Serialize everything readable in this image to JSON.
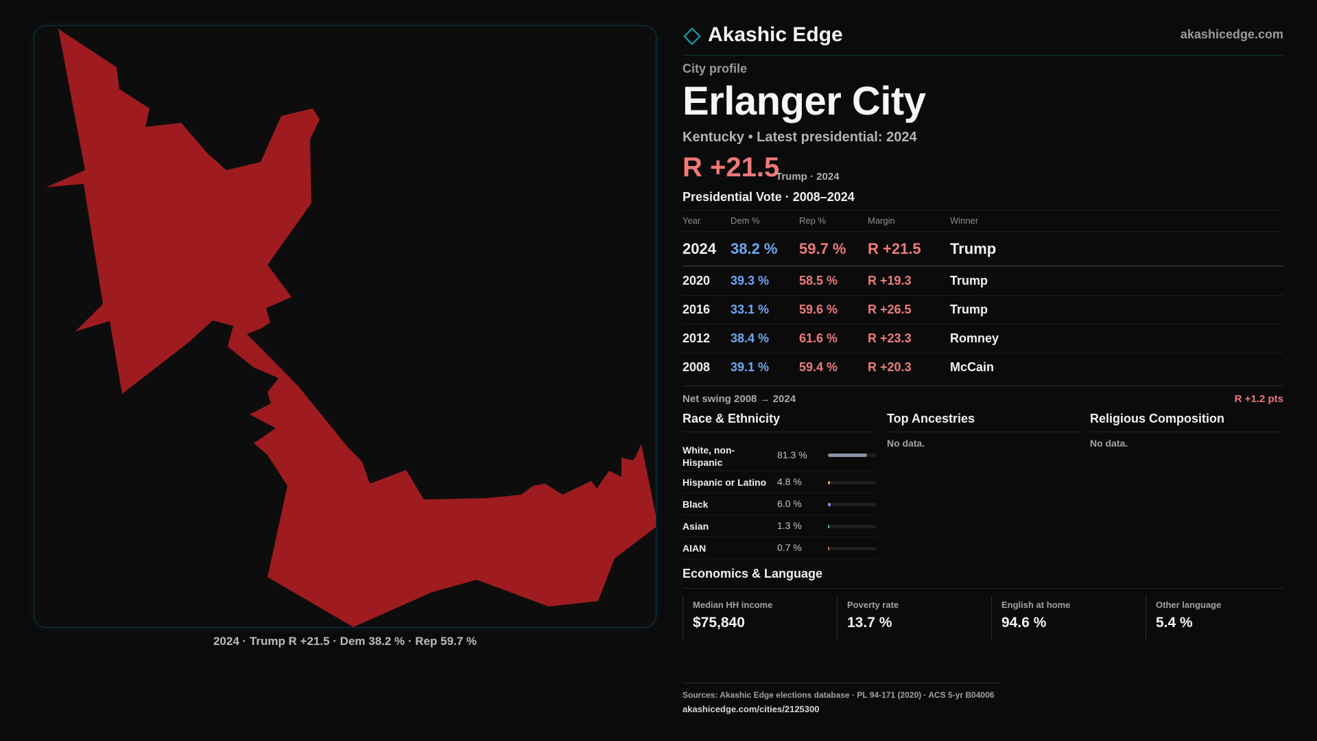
{
  "map": {
    "caption": "2024 · Trump R +21.5 · Dem 38.2 % · Rep 59.7 %",
    "fill_color": "#9e1c1f"
  },
  "header": {
    "brand_name": "Akashic Edge",
    "brand_url": "akashicedge.com",
    "brand_icon": "diamond-outline-icon"
  },
  "profile": {
    "eyebrow": "City profile",
    "title": "Erlanger City",
    "subtitle": "Kentucky • Latest presidential: 2024",
    "margin": "R +21.5",
    "margin_note": "Trump · 2024"
  },
  "votes": {
    "title": "Presidential Vote · 2008–2024",
    "headers": {
      "year": "Year",
      "dem": "Dem %",
      "rep": "Rep %",
      "margin": "Margin",
      "winner": "Winner"
    },
    "rows": [
      {
        "year": "2024",
        "dem": "38.2 %",
        "rep": "59.7 %",
        "margin": "R +21.5",
        "winner": "Trump"
      },
      {
        "year": "2020",
        "dem": "39.3 %",
        "rep": "58.5 %",
        "margin": "R +19.3",
        "winner": "Trump"
      },
      {
        "year": "2016",
        "dem": "33.1 %",
        "rep": "59.6 %",
        "margin": "R +26.5",
        "winner": "Trump"
      },
      {
        "year": "2012",
        "dem": "38.4 %",
        "rep": "61.6 %",
        "margin": "R +23.3",
        "winner": "Romney"
      },
      {
        "year": "2008",
        "dem": "39.1 %",
        "rep": "59.4 %",
        "margin": "R +20.3",
        "winner": "McCain"
      }
    ]
  },
  "swing": {
    "label": "Net swing 2008 → 2024",
    "value": "R +1.2 pts"
  },
  "race": {
    "title": "Race & Ethnicity",
    "rows": [
      {
        "label": "White, non-Hispanic",
        "pct": "81.3 %",
        "share": 0.813,
        "color": "#8a93a6"
      },
      {
        "label": "Hispanic or Latino",
        "pct": "4.8 %",
        "share": 0.048,
        "color": "#e0a43a"
      },
      {
        "label": "Black",
        "pct": "6.0 %",
        "share": 0.06,
        "color": "#9a86e0"
      },
      {
        "label": "Asian",
        "pct": "1.3 %",
        "share": 0.013,
        "color": "#3fbf8a"
      },
      {
        "label": "AIAN",
        "pct": "0.7 %",
        "share": 0.007,
        "color": "#c07a4a"
      }
    ]
  },
  "ancestries": {
    "title": "Top Ancestries",
    "empty": "No data."
  },
  "religion": {
    "title": "Religious Composition",
    "empty": "No data."
  },
  "economics": {
    "title": "Economics & Language",
    "items": [
      {
        "label": "Median HH income",
        "value": "$75,840"
      },
      {
        "label": "Poverty rate",
        "value": "13.7 %"
      },
      {
        "label": "English at home",
        "value": "94.6 %"
      },
      {
        "label": "Other language",
        "value": "5.4 %"
      }
    ]
  },
  "footer": {
    "sources": "Sources: Akashic Edge elections database · PL 94-171 (2020) · ACS 5-yr B04006",
    "link": "akashicedge.com/cities/2125300"
  }
}
